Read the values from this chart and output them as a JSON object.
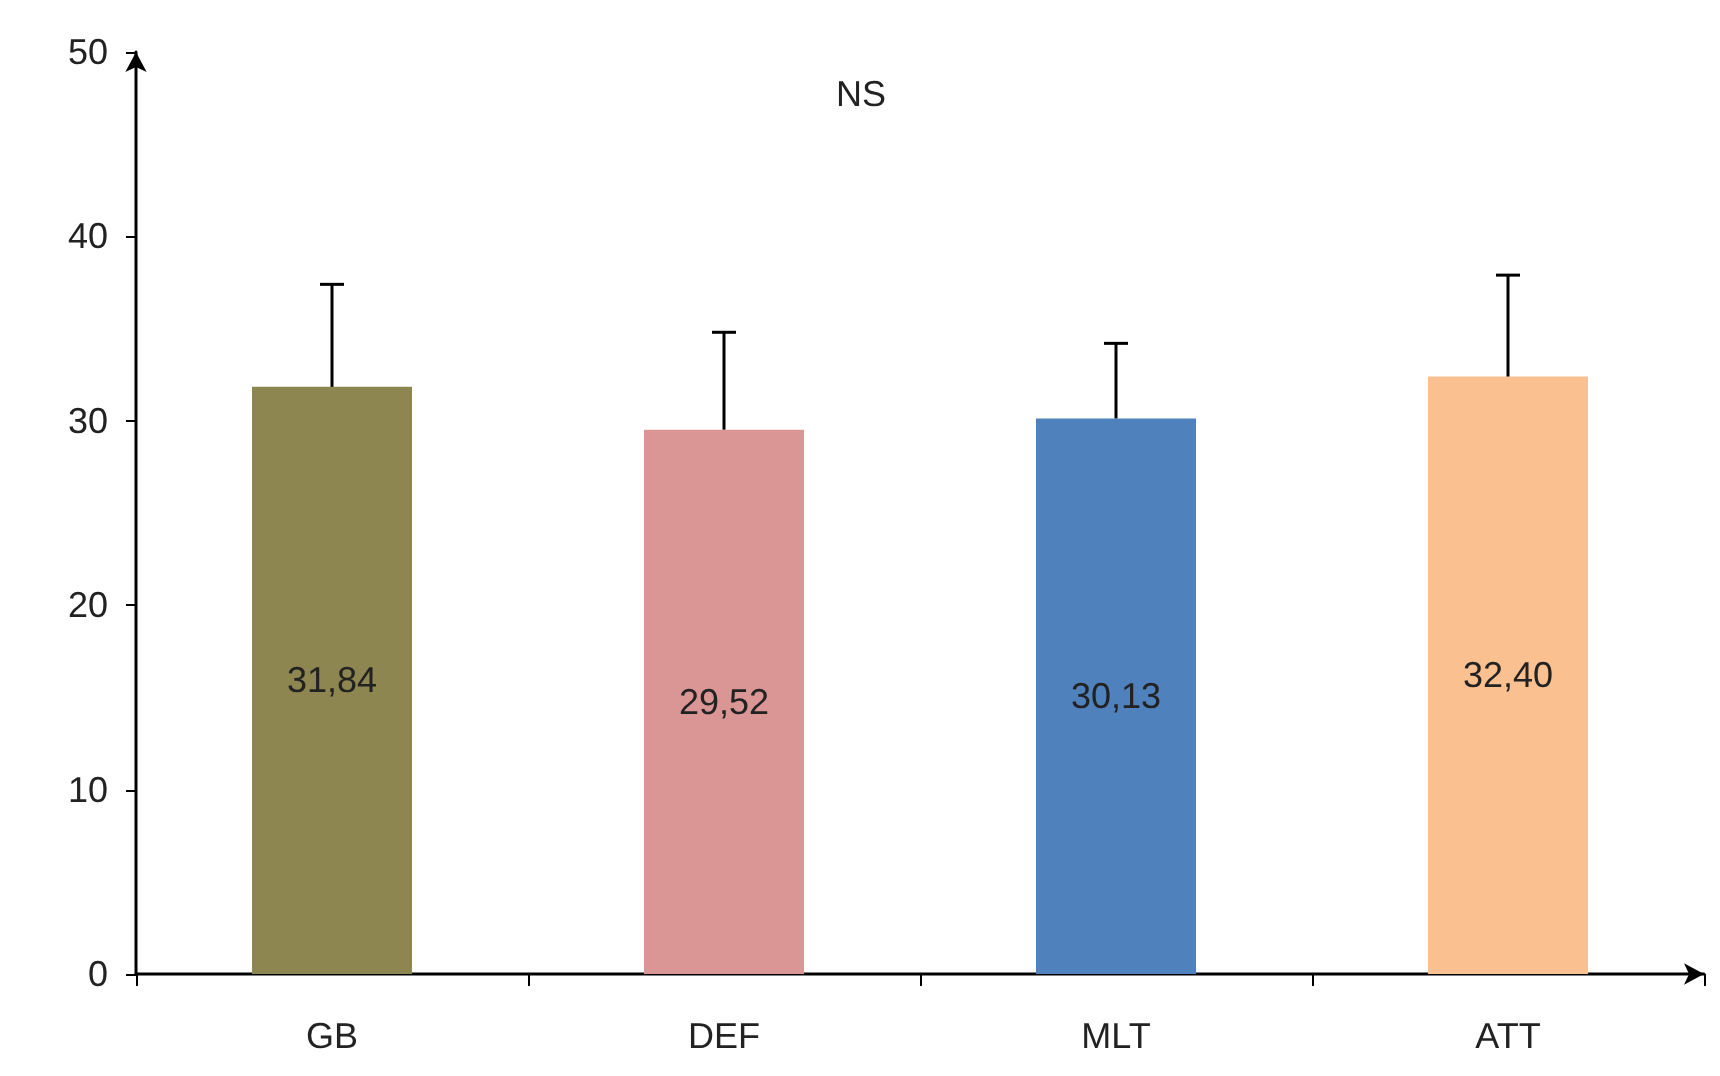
{
  "chart_data": {
    "type": "bar",
    "categories": [
      "GB",
      "DEF",
      "MLT",
      "ATT"
    ],
    "values": [
      31.84,
      29.52,
      30.13,
      32.4
    ],
    "colors": [
      "#8e8650",
      "#d99694",
      "#4f81bd",
      "#fac090"
    ],
    "value_labels": [
      "31,84",
      "29,52",
      "30,13",
      "32,40"
    ],
    "errors": [
      [
        31.84,
        37.4
      ],
      [
        29.52,
        34.8
      ],
      [
        30.13,
        34.2
      ],
      [
        32.4,
        37.9
      ]
    ],
    "ylim": [
      0,
      50
    ],
    "yticks": [
      0,
      10,
      20,
      30,
      40,
      50
    ],
    "grid": false,
    "annotations": [
      "NS"
    ]
  }
}
